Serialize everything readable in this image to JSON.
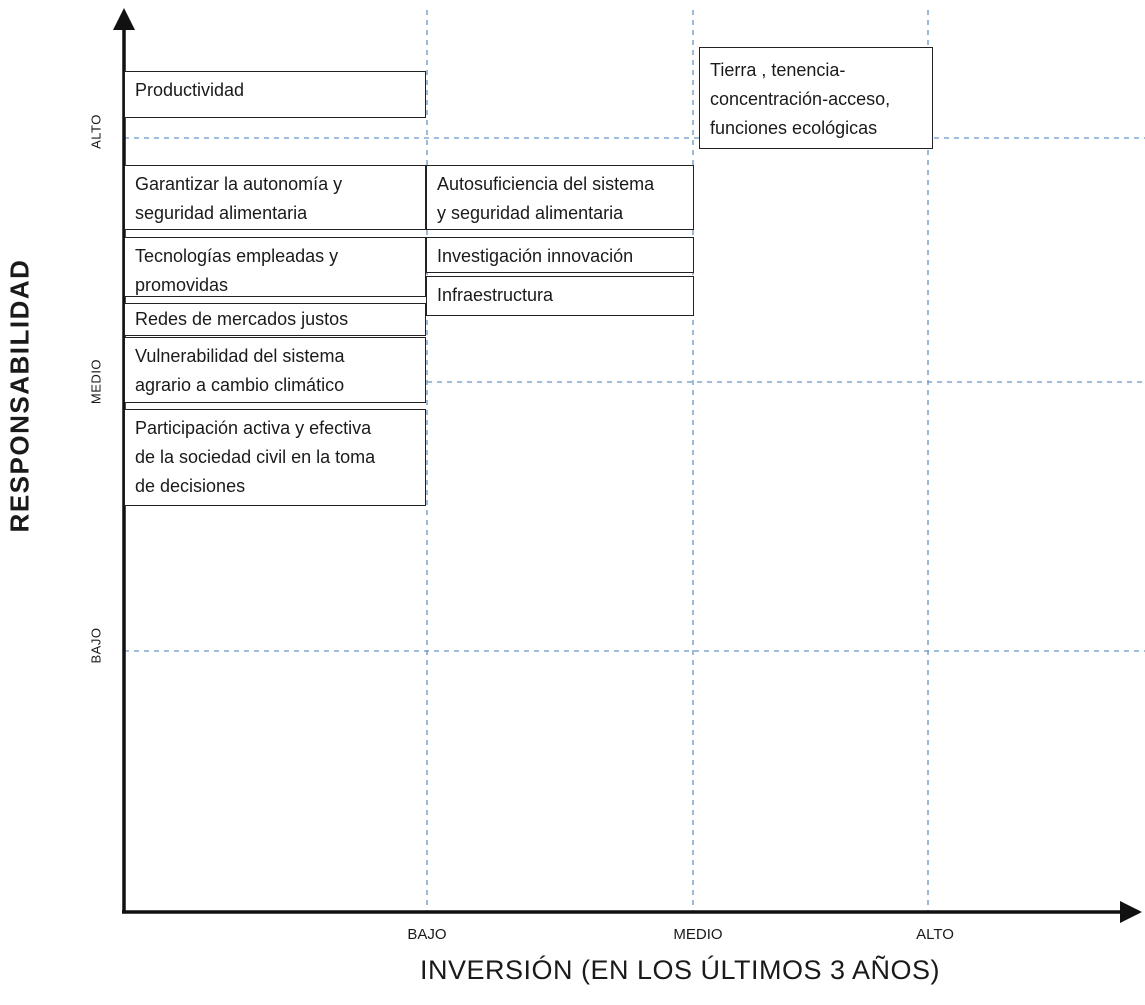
{
  "axes": {
    "y_title": "RESPONSABILIDAD",
    "x_title": "INVERSIÓN (EN LOS ÚLTIMOS 3 AÑOS)",
    "y_levels": [
      "ALTO",
      "MEDIO",
      "BAJO"
    ],
    "x_levels": [
      "BAJO",
      "MEDIO",
      "ALTO"
    ]
  },
  "boxes": [
    {
      "lines": [
        "Productividad"
      ]
    },
    {
      "lines": [
        "Garantizar la autonomía y",
        "seguridad alimentaria"
      ]
    },
    {
      "lines": [
        "Tecnologías empleadas y",
        "promovidas"
      ]
    },
    {
      "lines": [
        "Redes de mercados justos"
      ]
    },
    {
      "lines": [
        "Vulnerabilidad del sistema",
        "agrario a cambio climático"
      ]
    },
    {
      "lines": [
        "Participación activa y efectiva",
        "de la sociedad civil en la toma",
        "de decisiones"
      ]
    },
    {
      "lines": [
        "Autosuficiencia del sistema",
        "y seguridad alimentaria"
      ]
    },
    {
      "lines": [
        "Investigación innovación"
      ]
    },
    {
      "lines": [
        "Infraestructura"
      ]
    },
    {
      "lines": [
        "Tierra , tenencia-",
        "concentración-acceso,",
        "funciones ecológicas"
      ]
    }
  ]
}
